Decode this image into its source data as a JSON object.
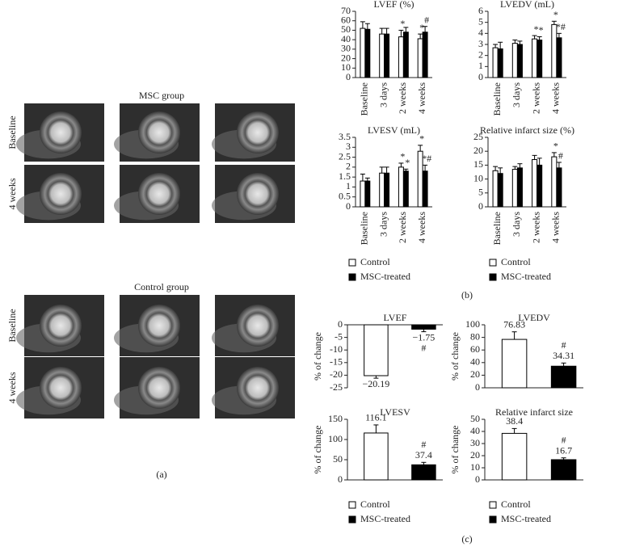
{
  "figure": {
    "panel_a": {
      "groups": [
        "MSC group",
        "Control group"
      ],
      "rows": [
        "Baseline",
        "4 weeks"
      ],
      "label": "(a)"
    },
    "panel_b_label": "(b)",
    "panel_c_label": "(c)"
  },
  "chart_data": [
    {
      "type": "bar",
      "title": "LVEF (%)",
      "categories": [
        "Baseline",
        "3 days",
        "2 weeks",
        "4 weeks"
      ],
      "ylim": [
        0,
        70
      ],
      "yticks": [
        0,
        10,
        20,
        30,
        40,
        50,
        60,
        70
      ],
      "series": [
        {
          "name": "Control",
          "color": "#ffffff",
          "values": [
            52,
            46,
            43,
            41
          ],
          "errors": [
            7,
            6,
            7,
            5
          ],
          "markers": [
            null,
            null,
            "*",
            "*"
          ]
        },
        {
          "name": "MSC-treated",
          "color": "#000000",
          "values": [
            51,
            46,
            48,
            48
          ],
          "errors": [
            6,
            6,
            5,
            6
          ],
          "markers": [
            null,
            null,
            null,
            "#"
          ]
        }
      ]
    },
    {
      "type": "bar",
      "title": "LVEDV (mL)",
      "categories": [
        "Baseline",
        "3 days",
        "2 weeks",
        "4 weeks"
      ],
      "ylim": [
        0,
        6
      ],
      "yticks": [
        0,
        1,
        2,
        3,
        4,
        5,
        6
      ],
      "series": [
        {
          "name": "Control",
          "color": "#ffffff",
          "values": [
            2.7,
            3.1,
            3.5,
            4.8
          ],
          "errors": [
            0.3,
            0.3,
            0.3,
            0.3
          ],
          "markers": [
            null,
            null,
            "*",
            "*"
          ]
        },
        {
          "name": "MSC-treated",
          "color": "#000000",
          "values": [
            2.6,
            3.0,
            3.4,
            3.6
          ],
          "errors": [
            0.6,
            0.3,
            0.3,
            0.4
          ],
          "markers": [
            null,
            null,
            "*",
            "*#"
          ]
        }
      ]
    },
    {
      "type": "bar",
      "title": "LVESV (mL)",
      "categories": [
        "Baseline",
        "3 days",
        "2 weeks",
        "4 weeks"
      ],
      "ylim": [
        0,
        3.5
      ],
      "yticks": [
        0,
        0.5,
        1,
        1.5,
        2,
        2.5,
        3,
        3.5
      ],
      "series": [
        {
          "name": "Control",
          "color": "#ffffff",
          "values": [
            1.3,
            1.7,
            2.0,
            2.8
          ],
          "errors": [
            0.35,
            0.3,
            0.2,
            0.3
          ],
          "markers": [
            null,
            null,
            "*",
            "*"
          ]
        },
        {
          "name": "MSC-treated",
          "color": "#000000",
          "values": [
            1.3,
            1.7,
            1.8,
            1.8
          ],
          "errors": [
            0.15,
            0.3,
            0.1,
            0.3
          ],
          "markers": [
            null,
            null,
            "*",
            "*#"
          ]
        }
      ]
    },
    {
      "type": "bar",
      "title": "Relative infarct size (%)",
      "categories": [
        "Baseline",
        "3 days",
        "2 weeks",
        "4 weeks"
      ],
      "ylim": [
        0,
        25
      ],
      "yticks": [
        0,
        5,
        10,
        15,
        20,
        25
      ],
      "series": [
        {
          "name": "Control",
          "color": "#ffffff",
          "values": [
            13,
            13.5,
            17,
            18
          ],
          "errors": [
            1.5,
            1,
            1.5,
            1.5
          ],
          "markers": [
            null,
            null,
            null,
            "*"
          ]
        },
        {
          "name": "MSC-treated",
          "color": "#000000",
          "values": [
            12,
            14,
            15,
            14
          ],
          "errors": [
            2,
            1.5,
            2.5,
            2
          ],
          "markers": [
            null,
            null,
            null,
            "#"
          ]
        }
      ]
    },
    {
      "type": "bar",
      "title": "LVEF",
      "ylabel": "% of change",
      "categories": [
        null
      ],
      "ylim": [
        -25,
        0
      ],
      "yticks": [
        -25,
        -20,
        -15,
        -10,
        -5,
        0
      ],
      "series": [
        {
          "name": "Control",
          "color": "#ffffff",
          "values": [
            -20.19
          ],
          "value_labels": [
            "−20.19"
          ],
          "errors": [
            1
          ],
          "markers": [
            null
          ]
        },
        {
          "name": "MSC-treated",
          "color": "#000000",
          "values": [
            -1.75
          ],
          "value_labels": [
            "−1.75"
          ],
          "errors": [
            1
          ],
          "markers": [
            "#"
          ]
        }
      ]
    },
    {
      "type": "bar",
      "title": "LVEDV",
      "ylabel": "% of change",
      "categories": [
        null
      ],
      "ylim": [
        0,
        100
      ],
      "yticks": [
        0,
        20,
        40,
        60,
        80,
        100
      ],
      "series": [
        {
          "name": "Control",
          "color": "#ffffff",
          "values": [
            76.83
          ],
          "errors": [
            12
          ],
          "markers": [
            null
          ]
        },
        {
          "name": "MSC-treated",
          "color": "#000000",
          "values": [
            34.31
          ],
          "errors": [
            5
          ],
          "markers": [
            "#"
          ]
        }
      ]
    },
    {
      "type": "bar",
      "title": "LVESV",
      "ylabel": "% of change",
      "categories": [
        null
      ],
      "ylim": [
        0,
        150
      ],
      "yticks": [
        0,
        50,
        100,
        150
      ],
      "series": [
        {
          "name": "Control",
          "color": "#ffffff",
          "values": [
            116.1
          ],
          "errors": [
            20
          ],
          "markers": [
            null
          ]
        },
        {
          "name": "MSC-treated",
          "color": "#000000",
          "values": [
            37.4
          ],
          "errors": [
            6
          ],
          "markers": [
            "#"
          ]
        }
      ]
    },
    {
      "type": "bar",
      "title": "Relative infarct size",
      "ylabel": "% of change",
      "categories": [
        null
      ],
      "ylim": [
        0,
        50
      ],
      "yticks": [
        0,
        10,
        20,
        30,
        40,
        50
      ],
      "series": [
        {
          "name": "Control",
          "color": "#ffffff",
          "values": [
            38.4
          ],
          "errors": [
            4
          ],
          "markers": [
            null
          ]
        },
        {
          "name": "MSC-treated",
          "color": "#000000",
          "values": [
            16.7
          ],
          "errors": [
            1.5
          ],
          "markers": [
            "#"
          ]
        }
      ]
    }
  ]
}
